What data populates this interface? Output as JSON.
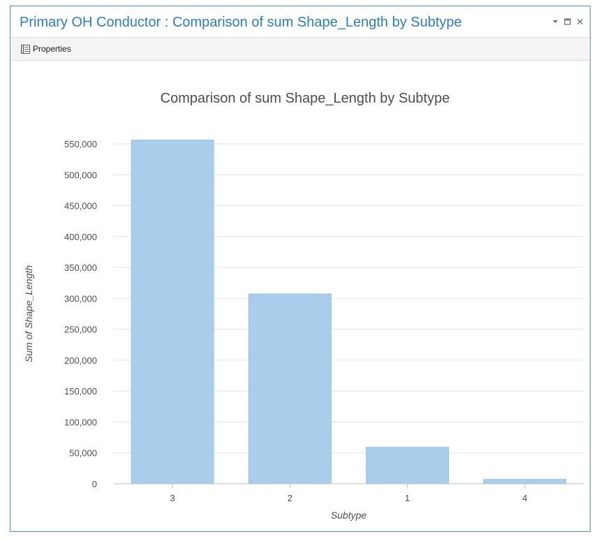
{
  "pane": {
    "title": "Primary OH Conductor : Comparison of sum Shape_Length by Subtype",
    "controls": [
      "dropdown-icon",
      "maximize-icon",
      "close-icon"
    ]
  },
  "toolbar": {
    "properties_label": "Properties",
    "properties_icon": "properties-icon"
  },
  "chart_data": {
    "type": "bar",
    "title": "Comparison of sum Shape_Length by Subtype",
    "xlabel": "Subtype",
    "ylabel": "Sum of Shape_Length",
    "categories": [
      "3",
      "2",
      "1",
      "4"
    ],
    "values": [
      556000,
      307000,
      59000,
      7000
    ],
    "ylim": [
      0,
      550000
    ],
    "yticks": [
      0,
      50000,
      100000,
      150000,
      200000,
      250000,
      300000,
      350000,
      400000,
      450000,
      500000,
      550000
    ],
    "ytick_labels": [
      "0",
      "50,000",
      "100,000",
      "150,000",
      "200,000",
      "250,000",
      "300,000",
      "350,000",
      "400,000",
      "450,000",
      "500,000",
      "550,000"
    ],
    "grid": true,
    "bar_color": "#aacdec",
    "bar_edge_color": "#8ebde6"
  }
}
